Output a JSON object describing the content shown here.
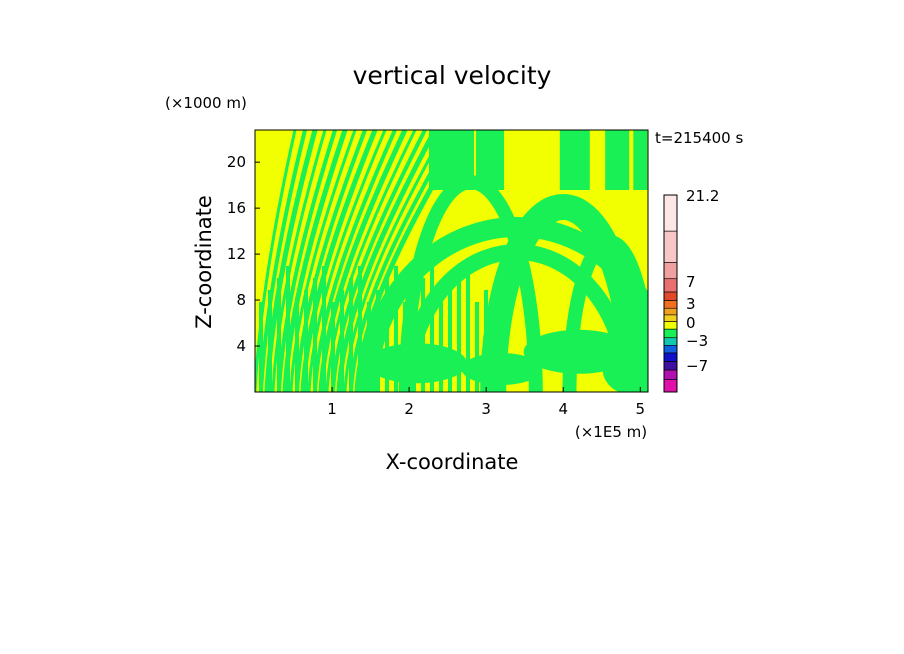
{
  "chart_data": {
    "type": "heatmap",
    "title": "vertical velocity",
    "xlabel": "X-coordinate",
    "ylabel": "Z-coordinate",
    "x_unit": "(×1E5 m)",
    "y_unit": "(×1000 m)",
    "time_label": "t=215400 s",
    "xlim": [
      0,
      5.1
    ],
    "ylim": [
      0,
      22.8
    ],
    "x_ticks": [
      "1",
      "2",
      "3",
      "4",
      "5"
    ],
    "y_ticks": [
      "4",
      "8",
      "12",
      "16",
      "20"
    ],
    "field_colors": {
      "positive": "#f2ff00",
      "negative": "#19f056"
    },
    "colorbar": {
      "labels": [
        "21.2",
        "7",
        "3",
        "0",
        "−3",
        "−7"
      ],
      "segments": [
        "#fde6e6",
        "#f7c6c6",
        "#f0a0a0",
        "#e87070",
        "#e04a2a",
        "#f07020",
        "#f0a020",
        "#f2d020",
        "#f2ff00",
        "#19f056",
        "#10c8b0",
        "#1060e0",
        "#1010c8",
        "#4010a0",
        "#b010b0",
        "#e010a8",
        "#f010c0"
      ]
    }
  }
}
